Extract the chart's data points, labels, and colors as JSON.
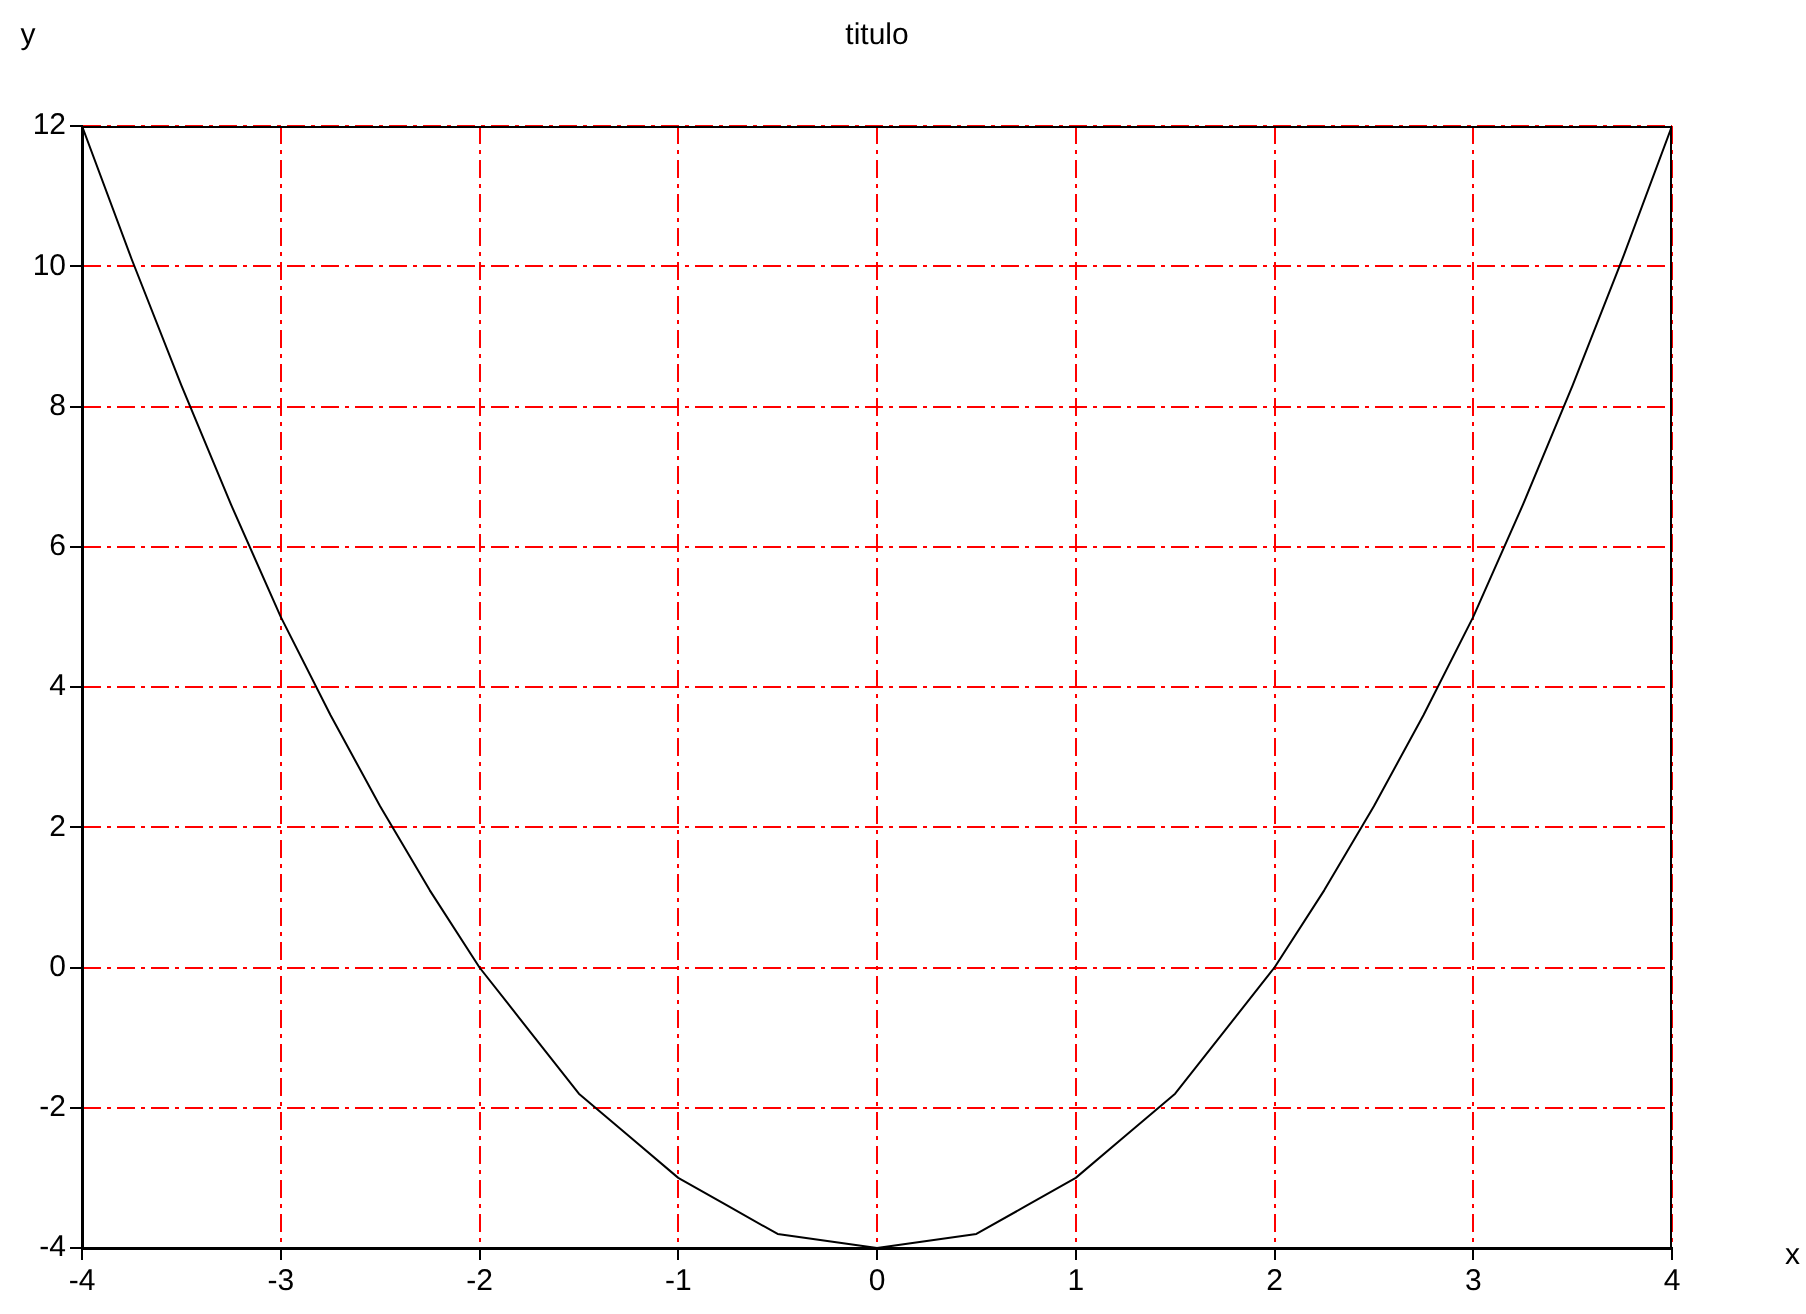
{
  "chart_data": {
    "type": "line",
    "title": "titulo",
    "xlabel": "x",
    "ylabel": "y",
    "x": [
      -4,
      -3.75,
      -3.5,
      -3.25,
      -3,
      -2.75,
      -2.5,
      -2.25,
      -2,
      -1.75,
      -1.5,
      -1.25,
      -1,
      -0.75,
      -0.5,
      -0.25,
      0,
      0.25,
      0.5,
      0.75,
      1,
      1.25,
      1.5,
      1.75,
      2,
      2.25,
      2.5,
      2.75,
      3,
      3.25,
      3.5,
      3.75,
      4
    ],
    "series": [
      {
        "color": "#000000",
        "values": [
          12,
          10.1,
          8.3,
          6.6,
          5,
          3.6,
          2.3,
          1.1,
          0,
          -0.9,
          -1.8,
          -2.4,
          -3,
          -3.4,
          -3.8,
          -3.9,
          -4,
          -3.9,
          -3.8,
          -3.4,
          -3,
          -2.4,
          -1.8,
          -0.9,
          0,
          1.1,
          2.3,
          3.6,
          5,
          6.6,
          8.3,
          10.1,
          12
        ]
      }
    ],
    "xlim": [
      -4,
      4
    ],
    "xticks": [
      -4,
      -3,
      -2,
      -1,
      0,
      1,
      2,
      3,
      4
    ],
    "ylim": [
      -4,
      12
    ],
    "yticks": [
      -4,
      -2,
      0,
      2,
      4,
      6,
      8,
      10,
      12
    ],
    "grid": true,
    "line_style": "solid",
    "marker": "none",
    "legend": false
  }
}
